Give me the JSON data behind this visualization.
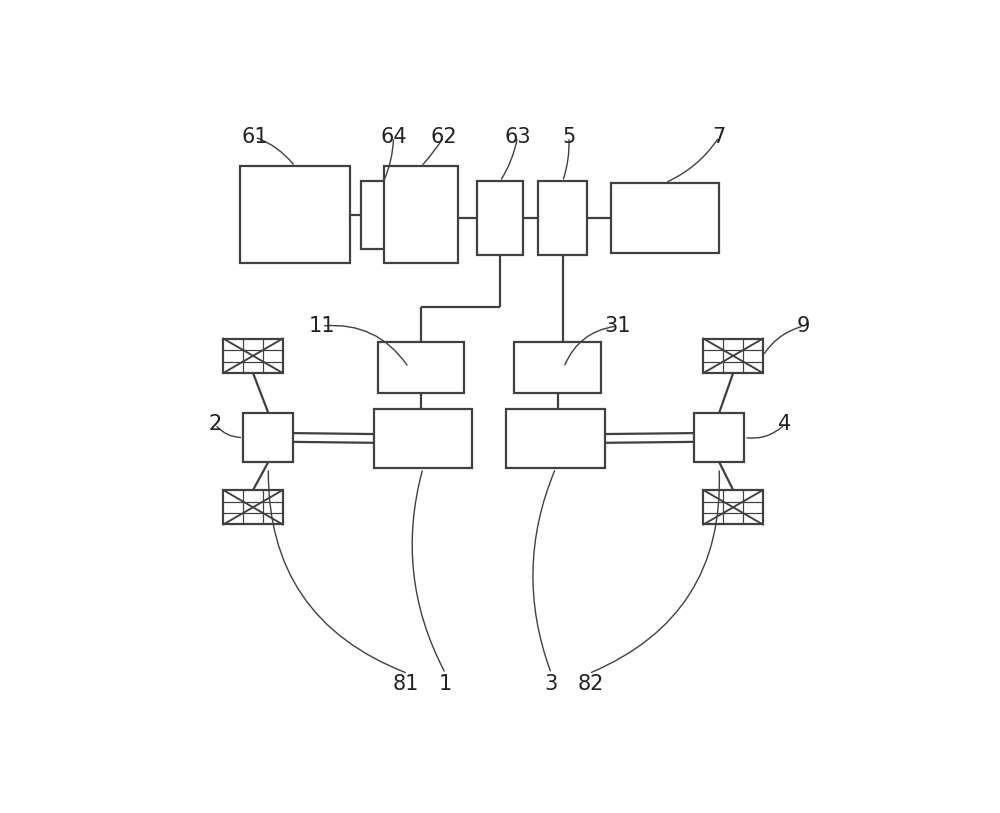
{
  "bg_color": "#ffffff",
  "line_color": "#404040",
  "box_edge_color": "#404040",
  "box_color": "#ffffff",
  "label_color": "#222222",
  "figsize": [
    10.0,
    8.13
  ],
  "dpi": 100,
  "boxes": {
    "b61": [
      0.065,
      0.735,
      0.175,
      0.155
    ],
    "b64": [
      0.258,
      0.758,
      0.072,
      0.108
    ],
    "b62": [
      0.295,
      0.735,
      0.118,
      0.155
    ],
    "b63": [
      0.444,
      0.748,
      0.072,
      0.118
    ],
    "b5": [
      0.541,
      0.748,
      0.078,
      0.118
    ],
    "b7": [
      0.658,
      0.752,
      0.172,
      0.112
    ],
    "b11": [
      0.285,
      0.528,
      0.138,
      0.082
    ],
    "b31": [
      0.503,
      0.528,
      0.138,
      0.082
    ],
    "b1": [
      0.278,
      0.408,
      0.158,
      0.095
    ],
    "b3": [
      0.49,
      0.408,
      0.158,
      0.095
    ],
    "b2": [
      0.07,
      0.418,
      0.08,
      0.078
    ],
    "b4": [
      0.79,
      0.418,
      0.08,
      0.078
    ]
  },
  "wheels": {
    "wTL": [
      0.038,
      0.56,
      0.095,
      0.055
    ],
    "wBL": [
      0.038,
      0.318,
      0.095,
      0.055
    ],
    "wTR": [
      0.805,
      0.56,
      0.095,
      0.055
    ],
    "wBR": [
      0.805,
      0.318,
      0.095,
      0.055
    ]
  }
}
